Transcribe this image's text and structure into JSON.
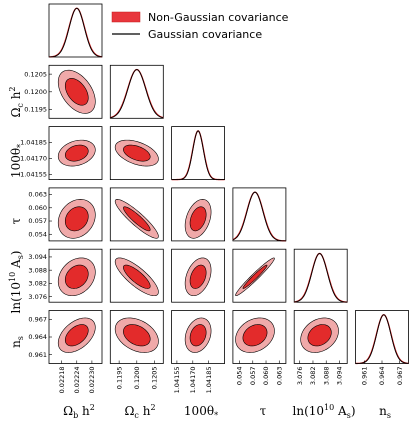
{
  "chart_data": {
    "type": "triangle-corner",
    "colors": {
      "outer": "#f0a9a9",
      "inner": "#e32b2b",
      "edge": "#000000",
      "gaussian": "#000000",
      "nongaussian": "#cc1a1a"
    },
    "legend": [
      {
        "label": "Non-Gaussian covariance",
        "style": "patch",
        "color": "#e8363c"
      },
      {
        "label": "Gaussian covariance",
        "style": "line",
        "color": "#000000"
      }
    ],
    "params": [
      {
        "label": "Ωbh²",
        "mean": 0.02224,
        "sigma": 3e-05,
        "range": [
          0.02213,
          0.02234
        ],
        "ticks": [
          "0.02218",
          "0.02224",
          "0.02230"
        ],
        "tickvals": [
          0.02218,
          0.02224,
          0.0223
        ]
      },
      {
        "label": "Ωch²",
        "mean": 0.12,
        "sigma": 0.00025,
        "range": [
          0.11925,
          0.12075
        ],
        "ticks": [
          "0.1195",
          "0.1200",
          "0.1205"
        ],
        "tickvals": [
          0.1195,
          0.12,
          0.1205
        ]
      },
      {
        "label": "100θ*",
        "mean": 1.04175,
        "sigma": 5e-05,
        "range": [
          1.0415,
          1.042
        ],
        "ticks": [
          "1.04155",
          "1.04170",
          "1.04185"
        ],
        "tickvals": [
          1.04155,
          1.0417,
          1.04185
        ]
      },
      {
        "label": "τ",
        "mean": 0.0575,
        "sigma": 0.0018,
        "range": [
          0.0525,
          0.0645
        ],
        "ticks": [
          "0.054",
          "0.057",
          "0.060",
          "0.063"
        ],
        "tickvals": [
          0.054,
          0.057,
          0.06,
          0.063
        ]
      },
      {
        "label": "ln(10¹⁰As)",
        "mean": 3.085,
        "sigma": 0.0035,
        "range": [
          3.0735,
          3.0975
        ],
        "ticks": [
          "3.076",
          "3.082",
          "3.088",
          "3.094"
        ],
        "tickvals": [
          3.076,
          3.082,
          3.088,
          3.094
        ]
      },
      {
        "label": "ns",
        "mean": 0.9643,
        "sigma": 0.0012,
        "range": [
          0.9595,
          0.9685
        ],
        "ticks": [
          "0.961",
          "0.964",
          "0.967"
        ],
        "tickvals": [
          0.961,
          0.964,
          0.967
        ]
      }
    ],
    "correlations": [
      [
        1.0,
        -0.45,
        0.25,
        0.2,
        0.25,
        0.45
      ],
      [
        -0.45,
        1.0,
        -0.45,
        -0.9,
        -0.8,
        -0.35
      ],
      [
        0.25,
        -0.45,
        1.0,
        0.35,
        0.35,
        0.25
      ],
      [
        0.2,
        -0.9,
        0.35,
        1.0,
        0.97,
        0.25
      ],
      [
        0.25,
        -0.8,
        0.35,
        0.97,
        1.0,
        0.25
      ],
      [
        0.45,
        -0.35,
        0.25,
        0.25,
        0.25,
        1.0
      ]
    ]
  }
}
